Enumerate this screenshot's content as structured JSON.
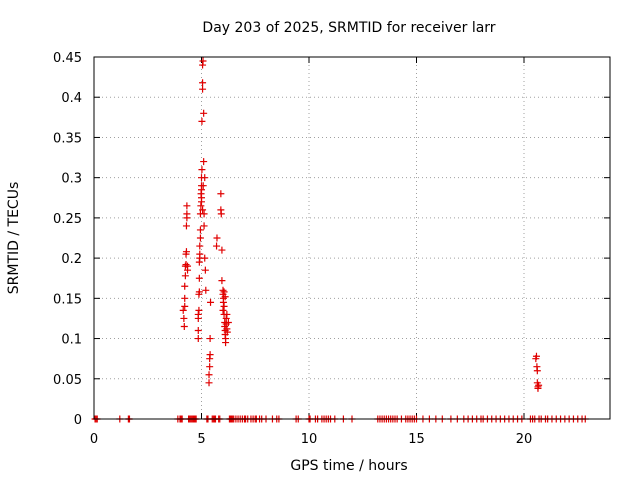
{
  "chart_data": {
    "type": "scatter",
    "title": "Day 203 of 2025, SRMTID for receiver larr",
    "xlabel": "GPS time / hours",
    "ylabel": "SRMTID / TECUs",
    "xlim": [
      0,
      24
    ],
    "ylim": [
      0,
      0.45
    ],
    "x_ticks": [
      0,
      5,
      10,
      15,
      20
    ],
    "y_ticks": [
      0,
      0.05,
      0.1,
      0.15,
      0.2,
      0.25,
      0.3,
      0.35,
      0.4,
      0.45
    ],
    "x_tick_labels": [
      "0",
      "5",
      "10",
      "15",
      "20"
    ],
    "y_tick_labels": [
      "0",
      "0.05",
      "0.1",
      "0.15",
      "0.2",
      "0.25",
      "0.3",
      "0.35",
      "0.4",
      "0.45"
    ],
    "grid": true,
    "marker": "plus",
    "color": "#e00000",
    "points": [
      [
        4.15,
        0.135
      ],
      [
        4.18,
        0.125
      ],
      [
        4.2,
        0.115
      ],
      [
        4.22,
        0.14
      ],
      [
        4.22,
        0.15
      ],
      [
        4.22,
        0.165
      ],
      [
        4.25,
        0.178
      ],
      [
        4.25,
        0.19
      ],
      [
        4.28,
        0.192
      ],
      [
        4.28,
        0.205
      ],
      [
        4.3,
        0.208
      ],
      [
        4.3,
        0.24
      ],
      [
        4.32,
        0.25
      ],
      [
        4.32,
        0.255
      ],
      [
        4.32,
        0.265
      ],
      [
        4.35,
        0.19
      ],
      [
        4.35,
        0.185
      ],
      [
        4.85,
        0.1
      ],
      [
        4.85,
        0.11
      ],
      [
        4.85,
        0.125
      ],
      [
        4.85,
        0.13
      ],
      [
        4.88,
        0.135
      ],
      [
        4.88,
        0.155
      ],
      [
        4.9,
        0.158
      ],
      [
        4.9,
        0.175
      ],
      [
        4.9,
        0.195
      ],
      [
        4.92,
        0.2
      ],
      [
        4.92,
        0.205
      ],
      [
        4.92,
        0.215
      ],
      [
        4.95,
        0.225
      ],
      [
        4.95,
        0.235
      ],
      [
        4.95,
        0.255
      ],
      [
        4.97,
        0.265
      ],
      [
        5.0,
        0.27
      ],
      [
        5.0,
        0.275
      ],
      [
        5.0,
        0.285
      ],
      [
        5.0,
        0.29
      ],
      [
        5.0,
        0.3
      ],
      [
        5.02,
        0.31
      ],
      [
        5.02,
        0.37
      ],
      [
        5.05,
        0.41
      ],
      [
        5.05,
        0.418
      ],
      [
        5.05,
        0.44
      ],
      [
        5.07,
        0.445
      ],
      [
        5.1,
        0.38
      ],
      [
        5.1,
        0.32
      ],
      [
        5.12,
        0.255
      ],
      [
        5.12,
        0.24
      ],
      [
        5.15,
        0.2
      ],
      [
        5.18,
        0.185
      ],
      [
        5.2,
        0.16
      ],
      [
        5.05,
        0.26
      ],
      [
        4.98,
        0.28
      ],
      [
        5.08,
        0.29
      ],
      [
        5.15,
        0.3
      ],
      [
        5.35,
        0.045
      ],
      [
        5.35,
        0.055
      ],
      [
        5.38,
        0.065
      ],
      [
        5.38,
        0.075
      ],
      [
        5.4,
        0.08
      ],
      [
        5.4,
        0.1
      ],
      [
        5.42,
        0.145
      ],
      [
        5.7,
        0.215
      ],
      [
        5.72,
        0.225
      ],
      [
        5.9,
        0.28
      ],
      [
        5.9,
        0.26
      ],
      [
        5.92,
        0.255
      ],
      [
        5.95,
        0.21
      ],
      [
        5.95,
        0.172
      ],
      [
        6.0,
        0.16
      ],
      [
        6.0,
        0.155
      ],
      [
        6.02,
        0.15
      ],
      [
        6.02,
        0.145
      ],
      [
        6.05,
        0.14
      ],
      [
        6.05,
        0.13
      ],
      [
        6.08,
        0.12
      ],
      [
        6.08,
        0.115
      ],
      [
        6.1,
        0.11
      ],
      [
        6.1,
        0.105
      ],
      [
        6.12,
        0.1
      ],
      [
        6.12,
        0.095
      ],
      [
        6.15,
        0.125
      ],
      [
        6.15,
        0.118
      ],
      [
        6.18,
        0.112
      ],
      [
        6.2,
        0.108
      ],
      [
        6.25,
        0.12
      ],
      [
        6.05,
        0.158
      ],
      [
        6.1,
        0.152
      ],
      [
        6.0,
        0.135
      ],
      [
        6.18,
        0.13
      ],
      [
        20.55,
        0.075
      ],
      [
        20.58,
        0.078
      ],
      [
        20.6,
        0.065
      ],
      [
        20.62,
        0.06
      ],
      [
        20.62,
        0.045
      ],
      [
        20.65,
        0.04
      ],
      [
        20.65,
        0.038
      ],
      [
        20.68,
        0.042
      ],
      [
        0.05,
        0
      ],
      [
        0.1,
        0
      ],
      [
        0.15,
        0
      ],
      [
        1.2,
        0
      ],
      [
        1.6,
        0
      ],
      [
        1.65,
        0
      ],
      [
        3.9,
        0
      ],
      [
        4.0,
        0
      ],
      [
        4.05,
        0
      ],
      [
        4.1,
        0
      ],
      [
        4.4,
        0
      ],
      [
        4.45,
        0
      ],
      [
        4.5,
        0
      ],
      [
        4.55,
        0
      ],
      [
        4.6,
        0
      ],
      [
        4.65,
        0
      ],
      [
        4.7,
        0
      ],
      [
        4.75,
        0
      ],
      [
        5.25,
        0
      ],
      [
        5.3,
        0
      ],
      [
        5.5,
        0
      ],
      [
        5.55,
        0
      ],
      [
        5.6,
        0
      ],
      [
        5.65,
        0
      ],
      [
        5.8,
        0
      ],
      [
        5.85,
        0
      ],
      [
        6.3,
        0
      ],
      [
        6.35,
        0
      ],
      [
        6.4,
        0
      ],
      [
        6.45,
        0
      ],
      [
        6.5,
        0
      ],
      [
        6.6,
        0
      ],
      [
        6.7,
        0
      ],
      [
        6.8,
        0
      ],
      [
        6.9,
        0
      ],
      [
        7.0,
        0
      ],
      [
        7.05,
        0
      ],
      [
        7.15,
        0
      ],
      [
        7.3,
        0
      ],
      [
        7.4,
        0
      ],
      [
        7.5,
        0
      ],
      [
        7.55,
        0
      ],
      [
        7.7,
        0
      ],
      [
        7.8,
        0
      ],
      [
        8.0,
        0
      ],
      [
        8.3,
        0
      ],
      [
        8.5,
        0
      ],
      [
        8.6,
        0
      ],
      [
        9.4,
        0
      ],
      [
        9.5,
        0
      ],
      [
        10.0,
        0
      ],
      [
        10.05,
        0
      ],
      [
        10.3,
        0
      ],
      [
        10.4,
        0
      ],
      [
        10.6,
        0
      ],
      [
        10.7,
        0
      ],
      [
        10.8,
        0
      ],
      [
        10.9,
        0
      ],
      [
        11.0,
        0
      ],
      [
        11.2,
        0
      ],
      [
        11.6,
        0
      ],
      [
        12.0,
        0
      ],
      [
        13.2,
        0
      ],
      [
        13.3,
        0
      ],
      [
        13.4,
        0
      ],
      [
        13.5,
        0
      ],
      [
        13.6,
        0
      ],
      [
        13.7,
        0
      ],
      [
        13.8,
        0
      ],
      [
        13.9,
        0
      ],
      [
        14.0,
        0
      ],
      [
        14.1,
        0
      ],
      [
        14.3,
        0
      ],
      [
        14.5,
        0
      ],
      [
        14.6,
        0
      ],
      [
        14.7,
        0
      ],
      [
        14.8,
        0
      ],
      [
        14.9,
        0
      ],
      [
        15.0,
        0
      ],
      [
        15.3,
        0
      ],
      [
        15.6,
        0
      ],
      [
        15.9,
        0
      ],
      [
        16.2,
        0
      ],
      [
        16.6,
        0
      ],
      [
        16.9,
        0
      ],
      [
        17.2,
        0
      ],
      [
        17.4,
        0
      ],
      [
        17.6,
        0
      ],
      [
        17.8,
        0
      ],
      [
        18.0,
        0
      ],
      [
        18.1,
        0
      ],
      [
        18.3,
        0
      ],
      [
        18.5,
        0
      ],
      [
        18.7,
        0
      ],
      [
        18.9,
        0
      ],
      [
        19.1,
        0
      ],
      [
        19.3,
        0
      ],
      [
        19.5,
        0
      ],
      [
        19.7,
        0
      ],
      [
        19.9,
        0
      ],
      [
        20.3,
        0
      ],
      [
        20.4,
        0
      ],
      [
        20.5,
        0
      ],
      [
        20.7,
        0
      ],
      [
        20.8,
        0
      ],
      [
        21.0,
        0
      ],
      [
        21.1,
        0
      ],
      [
        21.3,
        0
      ],
      [
        21.5,
        0
      ],
      [
        21.7,
        0
      ],
      [
        21.9,
        0
      ],
      [
        22.1,
        0
      ],
      [
        22.3,
        0
      ],
      [
        22.5,
        0
      ],
      [
        22.7,
        0
      ],
      [
        22.85,
        0
      ]
    ]
  }
}
